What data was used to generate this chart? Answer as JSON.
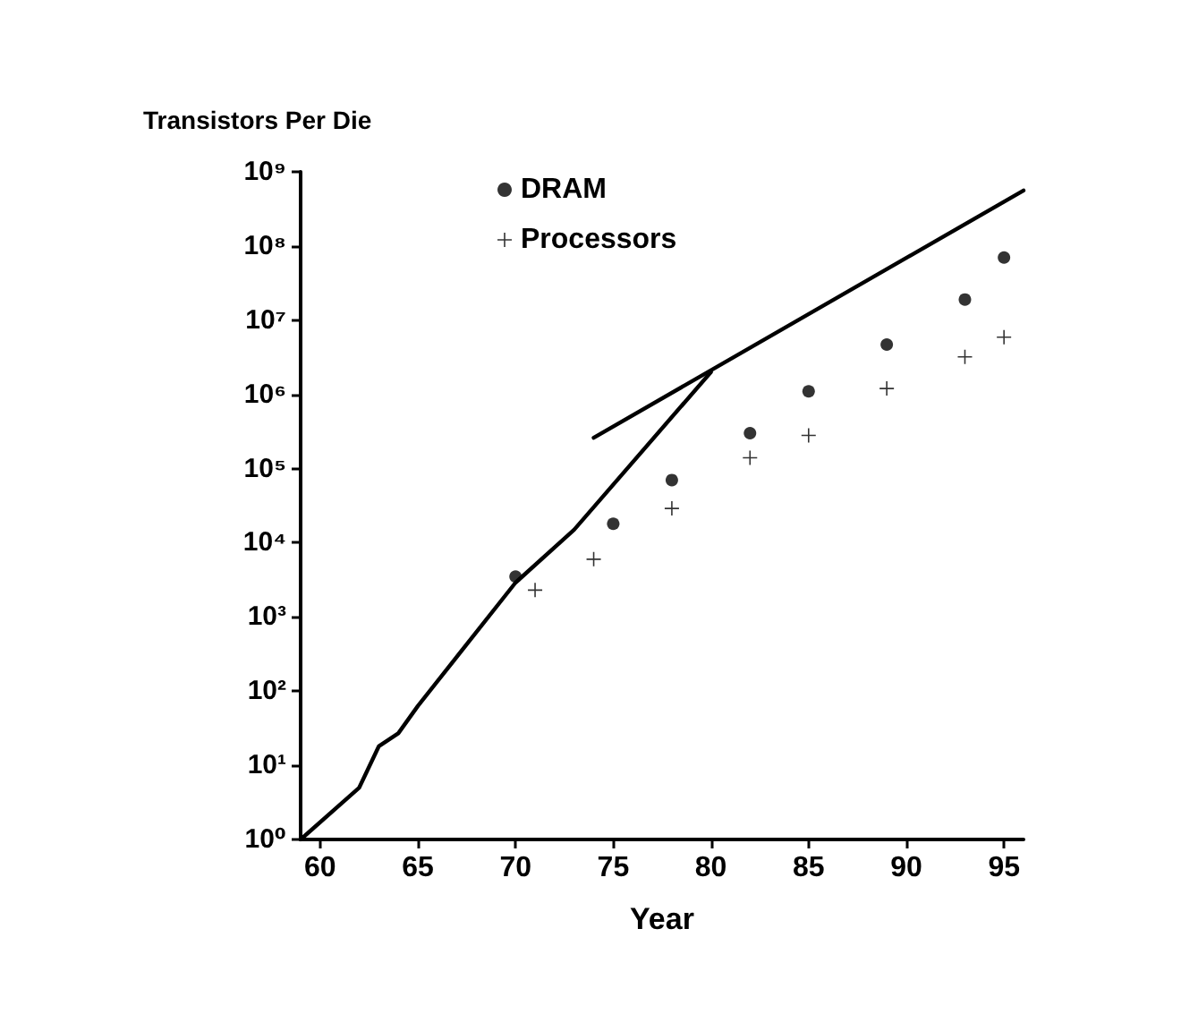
{
  "chart_data": {
    "type": "scatter",
    "xlabel": "Year",
    "ylabel": "Transistors Per Die",
    "log": "y",
    "grid": false,
    "legend": "top",
    "xlim": [
      59,
      96
    ],
    "xticks": [
      {
        "value": 60,
        "label": "60"
      },
      {
        "value": 65,
        "label": "65"
      },
      {
        "value": 70,
        "label": "70"
      },
      {
        "value": 75,
        "label": "75"
      },
      {
        "value": 80,
        "label": "80"
      },
      {
        "value": 85,
        "label": "85"
      },
      {
        "value": 90,
        "label": "90"
      },
      {
        "value": 95,
        "label": "95"
      }
    ],
    "ylim": [
      1,
      1000000000
    ],
    "yticks": [
      {
        "value": 1,
        "label": "10⁰"
      },
      {
        "value": 10,
        "label": "10¹"
      },
      {
        "value": 100,
        "label": "10²"
      },
      {
        "value": 1000,
        "label": "10³"
      },
      {
        "value": 10000,
        "label": "10⁴"
      },
      {
        "value": 100000,
        "label": "10⁵"
      },
      {
        "value": 1000000,
        "label": "10⁶"
      },
      {
        "value": 10000000,
        "label": "10⁷"
      },
      {
        "value": 100000000,
        "label": "10⁸"
      },
      {
        "value": 1000000000,
        "label": "10⁹"
      }
    ],
    "series": [
      {
        "name": "DRAM",
        "marker": "circle",
        "color": "#000000",
        "x": [
          70,
          75,
          78,
          82,
          85,
          89,
          93,
          95
        ],
        "values": [
          3500,
          18000,
          70000,
          300000,
          1100000,
          4700000,
          19000000,
          70000000
        ]
      },
      {
        "name": "Processors",
        "marker": "cross",
        "color": "#000000",
        "x": [
          71,
          74,
          78,
          82,
          85,
          89,
          93,
          95
        ],
        "values": [
          2300,
          6000,
          29000,
          140000,
          280000,
          1200000,
          3200000,
          5900000
        ]
      },
      {
        "type": "line",
        "marker": "none",
        "line_style": "solid",
        "color": "#000000",
        "x": [
          59,
          62,
          63,
          64,
          65,
          70,
          73,
          80
        ],
        "values": [
          1,
          5,
          18,
          27,
          63,
          2900,
          15000,
          2000000
        ]
      },
      {
        "type": "line",
        "marker": "none",
        "line_style": "solid",
        "color": "#000000",
        "x": [
          74,
          96
        ],
        "values": [
          260000,
          560000000
        ]
      }
    ]
  }
}
